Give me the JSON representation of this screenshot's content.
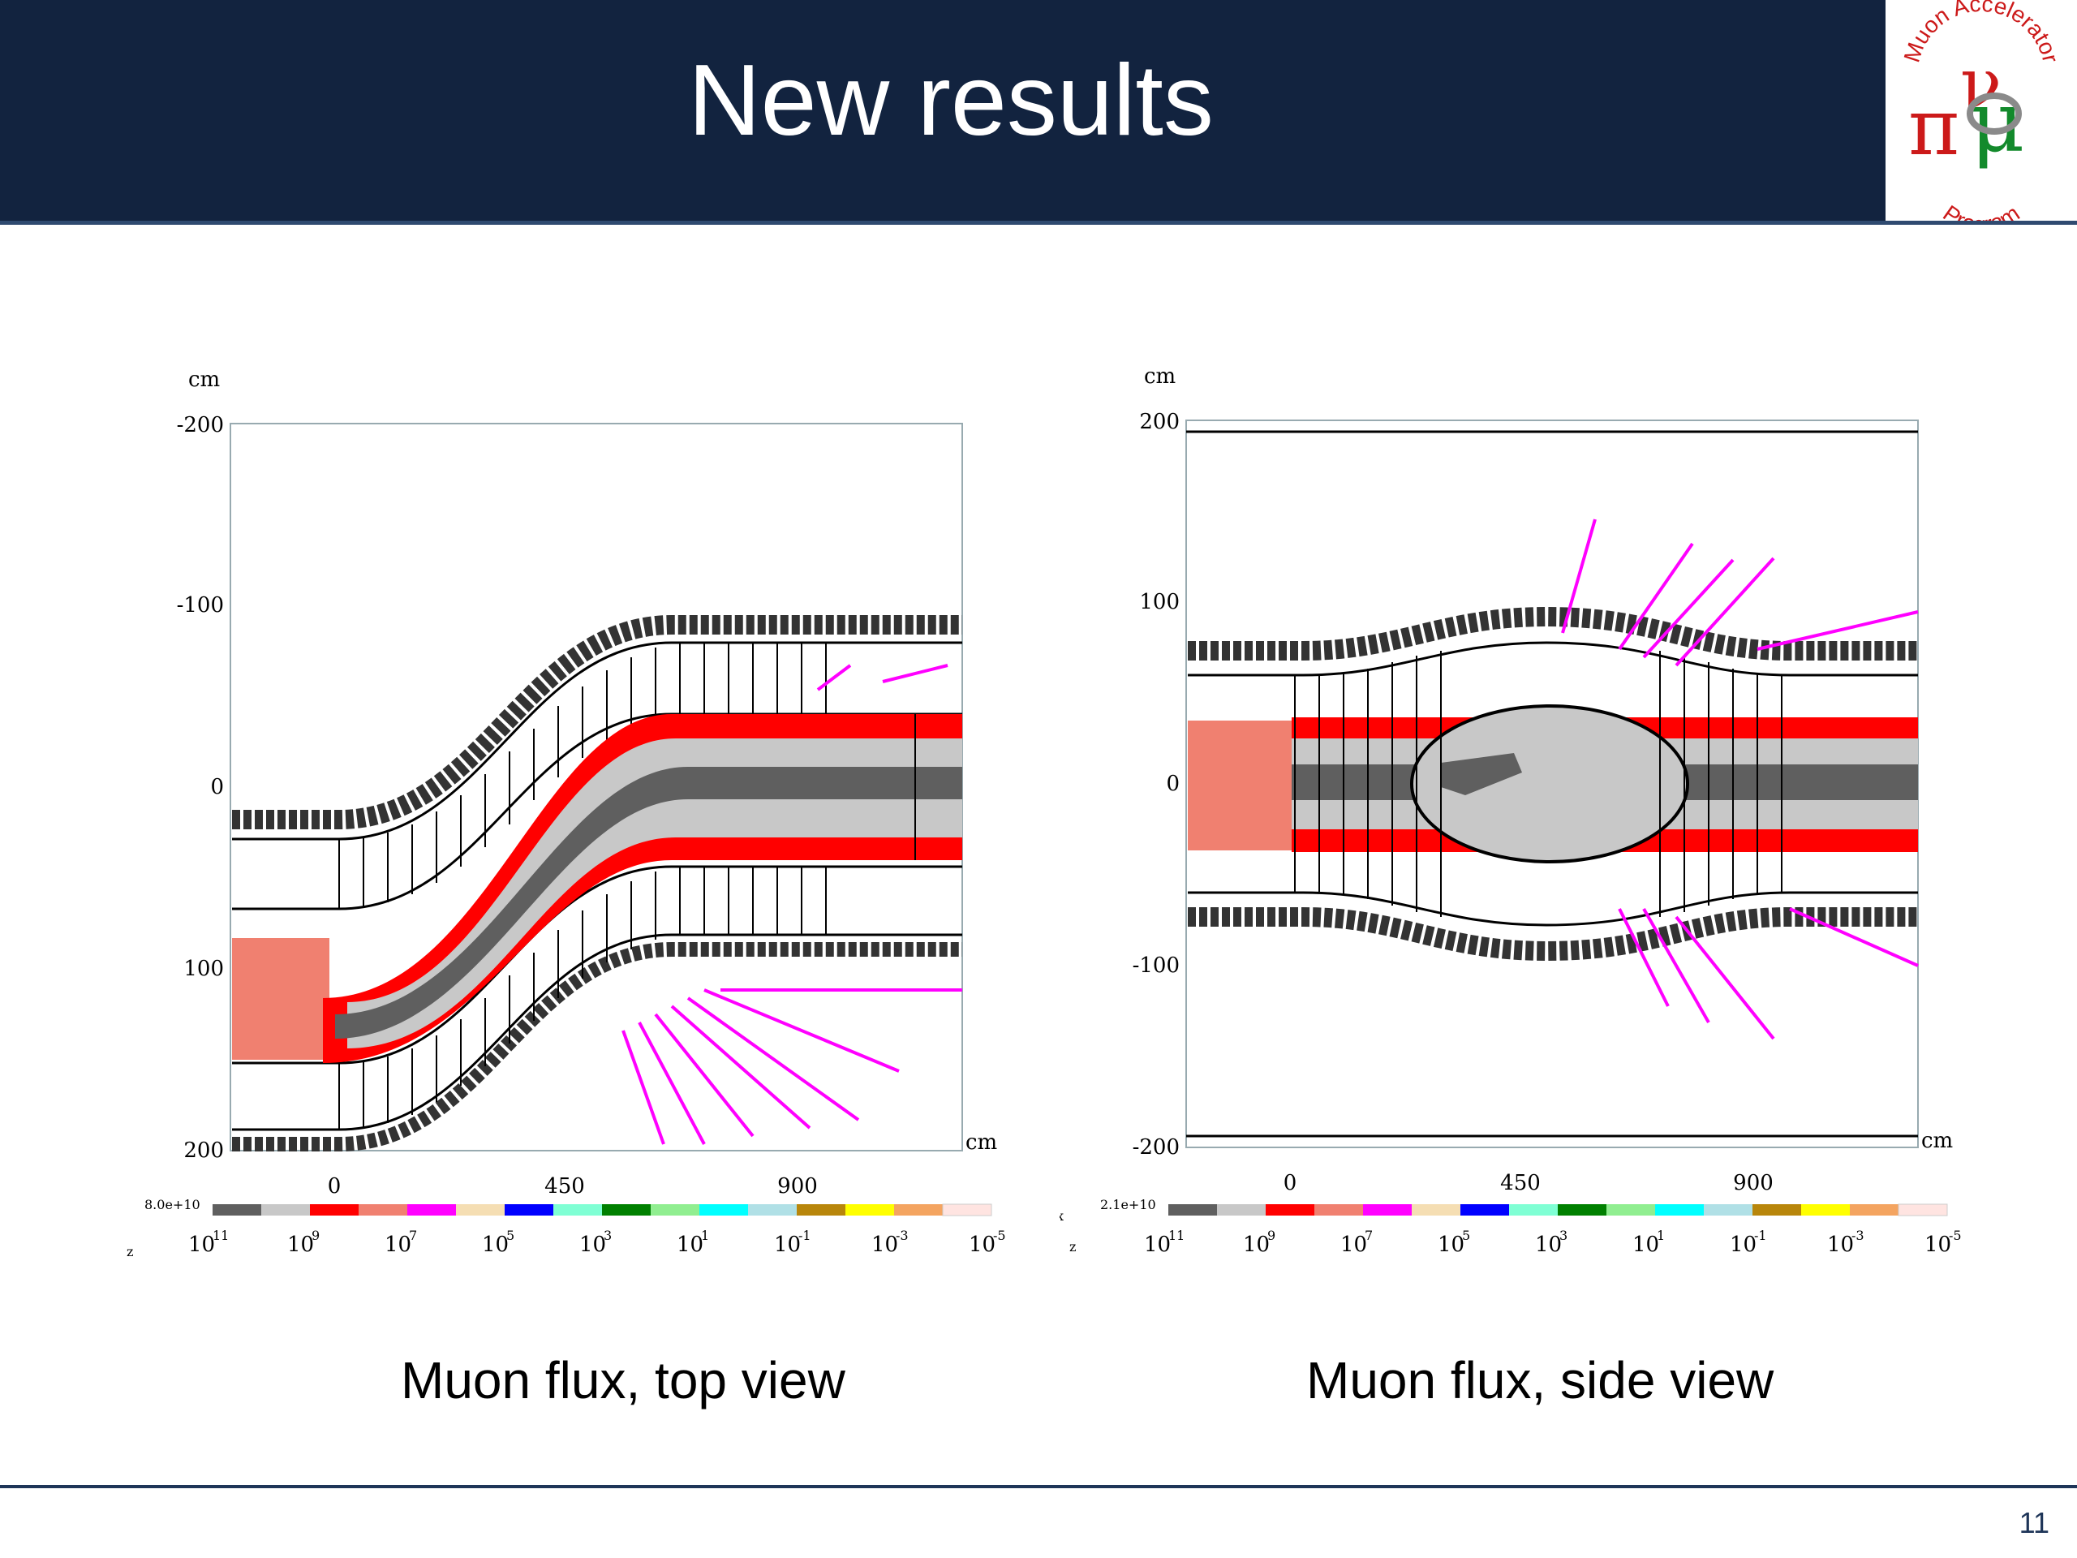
{
  "slide": {
    "title": "New results",
    "page_number": "11",
    "logo_text": {
      "top": "Muon Accelerator",
      "bottom": "Program"
    }
  },
  "figures": [
    {
      "caption": "Muon flux, top view",
      "axis_unit_y": "cm",
      "axis_unit_x": "cm",
      "y_ticks": [
        "-200",
        "-100",
        "0",
        "100",
        "200"
      ],
      "x_ticks": [
        "0",
        "450",
        "900"
      ],
      "colorbar_max": "8.0e+10",
      "colorbar_labels": [
        "10",
        "10",
        "10",
        "10",
        "10",
        "10",
        "10",
        "10",
        "10"
      ],
      "colorbar_exponents": [
        "11",
        "9",
        "7",
        "5",
        "3",
        "1",
        "-1",
        "-3",
        "-5"
      ],
      "axis_indicator": "z"
    },
    {
      "caption": "Muon flux, side view",
      "axis_unit_y": "cm",
      "axis_unit_x": "cm",
      "y_ticks": [
        "200",
        "100",
        "0",
        "-100",
        "-200"
      ],
      "x_ticks": [
        "0",
        "450",
        "900"
      ],
      "colorbar_max": "2.1e+10",
      "colorbar_labels": [
        "10",
        "10",
        "10",
        "10",
        "10",
        "10",
        "10",
        "10",
        "10"
      ],
      "colorbar_exponents": [
        "11",
        "9",
        "7",
        "5",
        "3",
        "1",
        "-1",
        "-3",
        "-5"
      ],
      "axis_indicator_x": "x",
      "axis_indicator": "z"
    }
  ],
  "colorbar_colors": [
    "#5f5f5f",
    "#c8c8c8",
    "#ff0000",
    "#f08070",
    "#ff00ff",
    "#f5deb3",
    "#0000ff",
    "#7fffd4",
    "#008000",
    "#90ee90",
    "#00ffff",
    "#b0e0e6",
    "#b8860b",
    "#ffff00",
    "#f4a460",
    "#ffe4e1"
  ]
}
